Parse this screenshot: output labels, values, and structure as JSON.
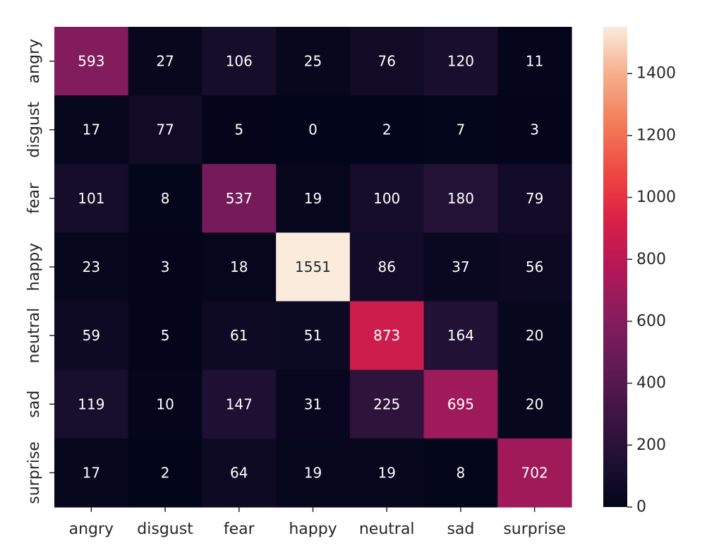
{
  "chart_data": {
    "type": "heatmap",
    "title": "",
    "xlabel": "",
    "ylabel": "",
    "x_categories": [
      "angry",
      "disgust",
      "fear",
      "happy",
      "neutral",
      "sad",
      "surprise"
    ],
    "y_categories": [
      "angry",
      "disgust",
      "fear",
      "happy",
      "neutral",
      "sad",
      "surprise"
    ],
    "values": [
      [
        593,
        27,
        106,
        25,
        76,
        120,
        11
      ],
      [
        17,
        77,
        5,
        0,
        2,
        7,
        3
      ],
      [
        101,
        8,
        537,
        19,
        100,
        180,
        79
      ],
      [
        23,
        3,
        18,
        1551,
        86,
        37,
        56
      ],
      [
        59,
        5,
        61,
        51,
        873,
        164,
        20
      ],
      [
        119,
        10,
        147,
        31,
        225,
        695,
        20
      ],
      [
        17,
        2,
        64,
        19,
        19,
        8,
        702
      ]
    ],
    "colorbar": {
      "min": 0,
      "max": 1551,
      "ticks": [
        0,
        200,
        400,
        600,
        800,
        1000,
        1200,
        1400
      ],
      "colormap": "rocket"
    }
  }
}
